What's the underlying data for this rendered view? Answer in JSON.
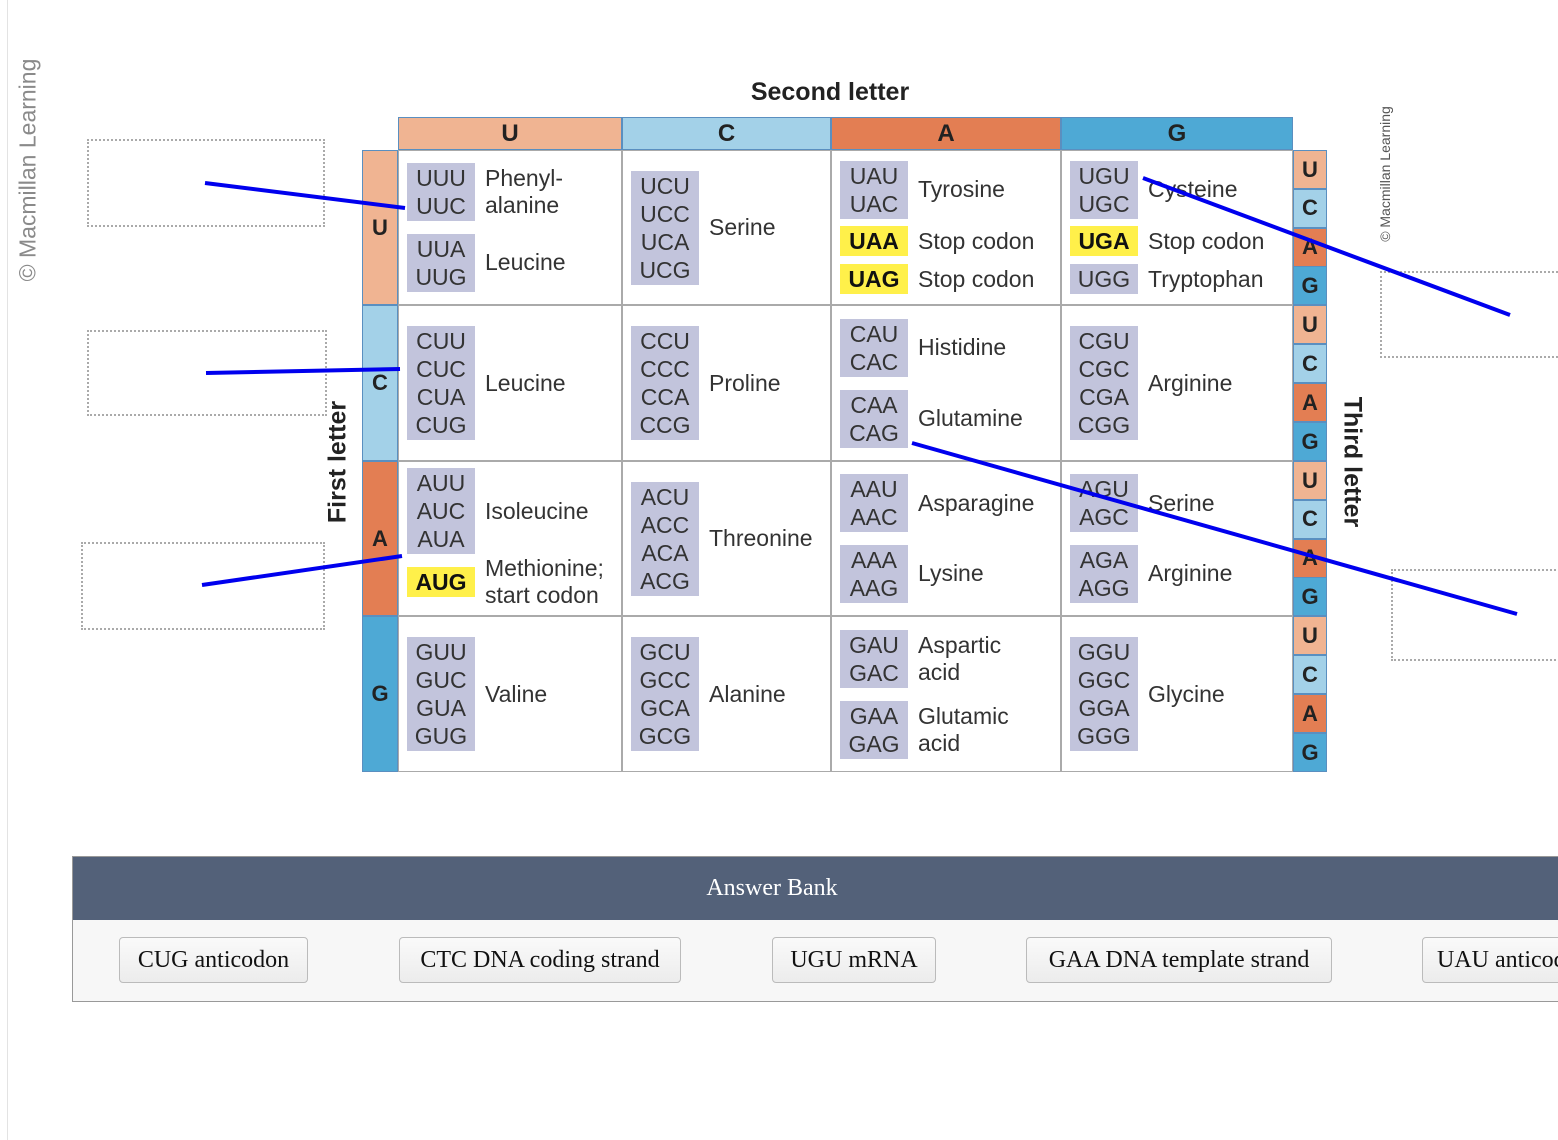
{
  "watermark": "© Macmillan Learning",
  "second_letter": "Second letter",
  "first_letter": "First letter",
  "third_letter": "Third letter",
  "colors": {
    "U": "#f0b492",
    "C": "#a3d1e8",
    "A": "#e37e53",
    "G": "#4ea9d5",
    "codon_box": "#c2c4dc",
    "stop_highlight": "#fff04a",
    "line": "#0000ee",
    "bank_header": "#536179"
  },
  "bases": [
    "U",
    "C",
    "A",
    "G"
  ],
  "cells": [
    [
      {
        "groups": [
          {
            "codons": [
              "UUU",
              "UUC"
            ],
            "label": "Phenyl-\nalanine"
          },
          {
            "codons": [
              "UUA",
              "UUG"
            ],
            "label": "Leucine"
          }
        ]
      },
      {
        "groups": [
          {
            "codons": [
              "UCU",
              "UCC",
              "UCA",
              "UCG"
            ],
            "label": "Serine"
          }
        ]
      },
      {
        "groups": [
          {
            "codons": [
              "UAU",
              "UAC"
            ],
            "label": "Tyrosine"
          },
          {
            "codons": [
              "UAA"
            ],
            "label": "Stop codon",
            "stop": true
          },
          {
            "codons": [
              "UAG"
            ],
            "label": "Stop codon",
            "stop": true
          }
        ]
      },
      {
        "groups": [
          {
            "codons": [
              "UGU",
              "UGC"
            ],
            "label": "Cysteine"
          },
          {
            "codons": [
              "UGA"
            ],
            "label": "Stop codon",
            "stop": true
          },
          {
            "codons": [
              "UGG"
            ],
            "label": "Tryptophan"
          }
        ]
      }
    ],
    [
      {
        "groups": [
          {
            "codons": [
              "CUU",
              "CUC",
              "CUA",
              "CUG"
            ],
            "label": "Leucine"
          }
        ]
      },
      {
        "groups": [
          {
            "codons": [
              "CCU",
              "CCC",
              "CCA",
              "CCG"
            ],
            "label": "Proline"
          }
        ]
      },
      {
        "groups": [
          {
            "codons": [
              "CAU",
              "CAC"
            ],
            "label": "Histidine"
          },
          {
            "codons": [
              "CAA",
              "CAG"
            ],
            "label": "Glutamine"
          }
        ]
      },
      {
        "groups": [
          {
            "codons": [
              "CGU",
              "CGC",
              "CGA",
              "CGG"
            ],
            "label": "Arginine"
          }
        ]
      }
    ],
    [
      {
        "groups": [
          {
            "codons": [
              "AUU",
              "AUC",
              "AUA"
            ],
            "label": "Isoleucine"
          },
          {
            "codons": [
              "AUG"
            ],
            "label": "Methionine;\nstart codon",
            "stop": true
          }
        ]
      },
      {
        "groups": [
          {
            "codons": [
              "ACU",
              "ACC",
              "ACA",
              "ACG"
            ],
            "label": "Threonine"
          }
        ]
      },
      {
        "groups": [
          {
            "codons": [
              "AAU",
              "AAC"
            ],
            "label": "Asparagine"
          },
          {
            "codons": [
              "AAA",
              "AAG"
            ],
            "label": "Lysine"
          }
        ]
      },
      {
        "groups": [
          {
            "codons": [
              "AGU",
              "AGC"
            ],
            "label": "Serine"
          },
          {
            "codons": [
              "AGA",
              "AGG"
            ],
            "label": "Arginine"
          }
        ]
      }
    ],
    [
      {
        "groups": [
          {
            "codons": [
              "GUU",
              "GUC",
              "GUA",
              "GUG"
            ],
            "label": "Valine"
          }
        ]
      },
      {
        "groups": [
          {
            "codons": [
              "GCU",
              "GCC",
              "GCA",
              "GCG"
            ],
            "label": "Alanine"
          }
        ]
      },
      {
        "groups": [
          {
            "codons": [
              "GAU",
              "GAC"
            ],
            "label": "Aspartic\nacid"
          },
          {
            "codons": [
              "GAA",
              "GAG"
            ],
            "label": "Glutamic\nacid"
          }
        ]
      },
      {
        "groups": [
          {
            "codons": [
              "GGU",
              "GGC",
              "GGA",
              "GGG"
            ],
            "label": "Glycine"
          }
        ]
      }
    ]
  ],
  "answer_bank": {
    "title": "Answer Bank",
    "items": [
      "CUG anticodon",
      "CTC DNA coding strand",
      "UGU mRNA",
      "GAA DNA template strand",
      "UAU anticodon"
    ]
  }
}
